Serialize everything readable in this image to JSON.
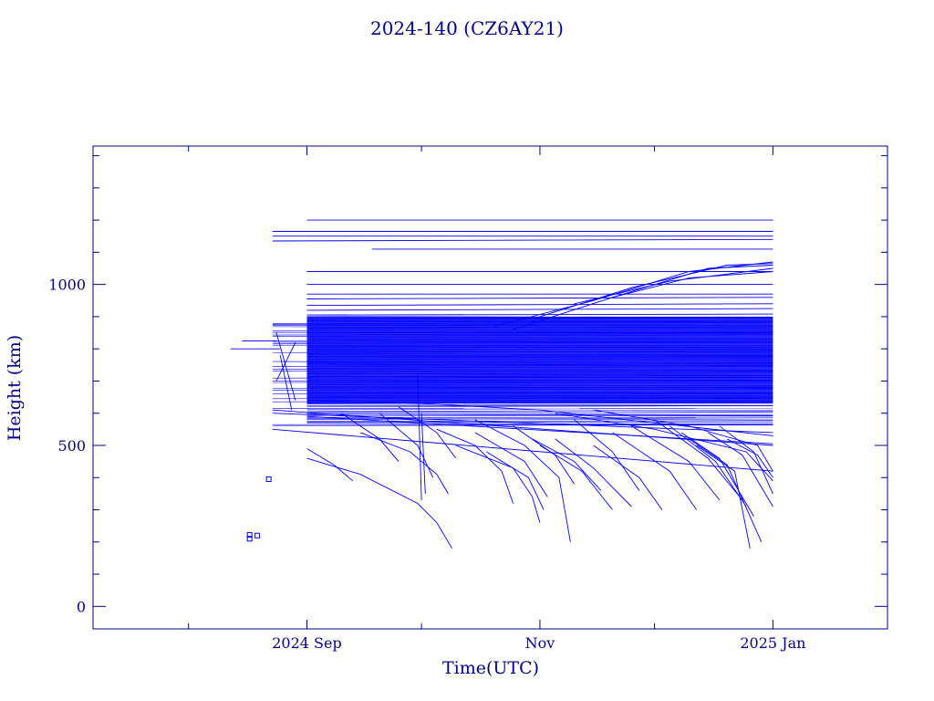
{
  "chart_data": {
    "type": "line",
    "title": "2024-140 (CZ6AY21)",
    "xlabel": "Time(UTC)",
    "ylabel": "Height (km)",
    "xlim": [
      "2024-07-07",
      "2025-01-31"
    ],
    "ylim": [
      -70,
      1430
    ],
    "x_ticks": [
      {
        "label": "2024 Sep",
        "date": "2024-09-01"
      },
      {
        "label": "Nov",
        "date": "2024-11-01"
      },
      {
        "label": "2025 Jan",
        "date": "2025-01-01"
      }
    ],
    "y_ticks": [
      {
        "label": "0",
        "value": 0
      },
      {
        "label": "500",
        "value": 500
      },
      {
        "label": "1000",
        "value": 1000
      }
    ],
    "grid": false,
    "colors": {
      "axis": "#00008b",
      "data": "#0000ff",
      "text": "#00008b"
    },
    "band": {
      "x_start": "2024-09-01",
      "x_end": "2025-01-01",
      "y_min": 630,
      "y_max": 900
    },
    "series": [
      {
        "x": [
          "2024-08-23",
          "2025-01-01"
        ],
        "y": [
          1165,
          1165
        ]
      },
      {
        "x": [
          "2024-08-23",
          "2025-01-01"
        ],
        "y": [
          1150,
          1150
        ]
      },
      {
        "x": [
          "2024-08-23",
          "2025-01-01"
        ],
        "y": [
          1135,
          1140
        ]
      },
      {
        "x": [
          "2024-09-01",
          "2025-01-01"
        ],
        "y": [
          1200,
          1200
        ]
      },
      {
        "x": [
          "2024-09-18",
          "2025-01-01"
        ],
        "y": [
          1110,
          1110
        ]
      },
      {
        "x": [
          "2024-09-01",
          "2025-01-01"
        ],
        "y": [
          1040,
          1040
        ]
      },
      {
        "x": [
          "2024-09-01",
          "2025-01-01"
        ],
        "y": [
          1000,
          1000
        ]
      },
      {
        "x": [
          "2024-09-01",
          "2025-01-01"
        ],
        "y": [
          970,
          970
        ]
      },
      {
        "x": [
          "2024-09-01",
          "2025-01-01"
        ],
        "y": [
          955,
          960
        ]
      },
      {
        "x": [
          "2024-09-01",
          "2025-01-01"
        ],
        "y": [
          935,
          940
        ]
      },
      {
        "x": [
          "2024-09-01",
          "2025-01-01"
        ],
        "y": [
          920,
          925
        ]
      },
      {
        "x": [
          "2024-09-01",
          "2025-01-01"
        ],
        "y": [
          905,
          908
        ]
      },
      {
        "x": [
          "2024-08-23",
          "2025-01-01"
        ],
        "y": [
          600,
          540
        ]
      },
      {
        "x": [
          "2024-08-23",
          "2025-01-01"
        ],
        "y": [
          610,
          500
        ]
      },
      {
        "x": [
          "2024-08-23",
          "2025-01-01"
        ],
        "y": [
          550,
          420
        ]
      },
      {
        "x": [
          "2024-09-01",
          "2025-01-01"
        ],
        "y": [
          590,
          505
        ]
      },
      {
        "x": [
          "2024-09-01",
          "2024-10-01",
          "2024-11-01",
          "2024-12-01",
          "2025-01-01"
        ],
        "y": [
          640,
          630,
          610,
          570,
          530
        ]
      },
      {
        "x": [
          "2024-10-20",
          "2024-11-15",
          "2024-12-10",
          "2025-01-01"
        ],
        "y": [
          870,
          950,
          1040,
          1070
        ]
      },
      {
        "x": [
          "2024-10-25",
          "2024-11-20",
          "2024-12-15",
          "2025-01-01"
        ],
        "y": [
          860,
          960,
          1050,
          1060
        ]
      },
      {
        "x": [
          "2024-11-01",
          "2024-11-25",
          "2024-12-20",
          "2025-01-01"
        ],
        "y": [
          900,
          990,
          1060,
          1065
        ]
      },
      {
        "x": [
          "2024-11-10",
          "2024-12-05",
          "2025-01-01"
        ],
        "y": [
          940,
          1010,
          1050
        ]
      },
      {
        "x": [
          "2024-11-20",
          "2024-12-10",
          "2025-01-01"
        ],
        "y": [
          960,
          1020,
          1040
        ]
      },
      {
        "x": [
          "2024-09-01",
          "2024-09-08",
          "2024-09-13"
        ],
        "y": [
          490,
          440,
          390
        ]
      },
      {
        "x": [
          "2024-09-01",
          "2024-09-15",
          "2024-09-30",
          "2024-10-05",
          "2024-10-09"
        ],
        "y": [
          460,
          410,
          320,
          260,
          180
        ]
      },
      {
        "x": [
          "2024-09-15",
          "2024-09-28",
          "2024-10-05",
          "2024-10-08"
        ],
        "y": [
          540,
          480,
          410,
          350
        ]
      },
      {
        "x": [
          "2024-09-20",
          "2024-09-30",
          "2024-10-04"
        ],
        "y": [
          600,
          500,
          400
        ]
      },
      {
        "x": [
          "2024-09-10",
          "2024-09-20",
          "2024-09-25"
        ],
        "y": [
          600,
          520,
          450
        ]
      },
      {
        "x": [
          "2024-09-25",
          "2024-10-05",
          "2024-10-10"
        ],
        "y": [
          620,
          540,
          460
        ]
      },
      {
        "x": [
          "2024-10-05",
          "2024-10-15",
          "2024-10-22",
          "2024-10-25"
        ],
        "y": [
          550,
          500,
          420,
          320
        ]
      },
      {
        "x": [
          "2024-10-10",
          "2024-10-25",
          "2024-10-30",
          "2024-11-01"
        ],
        "y": [
          500,
          430,
          340,
          260
        ]
      },
      {
        "x": [
          "2024-10-15",
          "2024-10-28",
          "2024-11-03"
        ],
        "y": [
          540,
          450,
          340
        ]
      },
      {
        "x": [
          "2024-10-18",
          "2024-10-29",
          "2024-11-02"
        ],
        "y": [
          480,
          400,
          300
        ]
      },
      {
        "x": [
          "2024-10-15",
          "2024-10-28",
          "2024-11-06",
          "2024-11-09"
        ],
        "y": [
          580,
          500,
          400,
          200
        ]
      },
      {
        "x": [
          "2024-10-25",
          "2024-11-05",
          "2024-11-10"
        ],
        "y": [
          560,
          470,
          380
        ]
      },
      {
        "x": [
          "2024-10-30",
          "2024-11-10",
          "2024-11-17"
        ],
        "y": [
          520,
          450,
          360
        ]
      },
      {
        "x": [
          "2024-11-01",
          "2024-11-12",
          "2024-11-20"
        ],
        "y": [
          500,
          420,
          300
        ]
      },
      {
        "x": [
          "2024-11-05",
          "2024-11-15",
          "2024-11-25"
        ],
        "y": [
          520,
          430,
          310
        ]
      },
      {
        "x": [
          "2024-11-10",
          "2024-11-20",
          "2024-11-27"
        ],
        "y": [
          580,
          480,
          360
        ]
      },
      {
        "x": [
          "2024-11-15",
          "2024-11-27",
          "2024-12-03"
        ],
        "y": [
          500,
          400,
          300
        ]
      },
      {
        "x": [
          "2024-11-20",
          "2024-12-05",
          "2024-12-12"
        ],
        "y": [
          540,
          420,
          300
        ]
      },
      {
        "x": [
          "2024-11-25",
          "2024-12-10",
          "2024-12-18"
        ],
        "y": [
          560,
          450,
          330
        ]
      },
      {
        "x": [
          "2024-12-01",
          "2024-12-15",
          "2024-12-24"
        ],
        "y": [
          580,
          460,
          330
        ]
      },
      {
        "x": [
          "2024-12-05",
          "2024-12-17",
          "2024-12-25"
        ],
        "y": [
          560,
          450,
          310
        ]
      },
      {
        "x": [
          "2024-12-08",
          "2024-12-18",
          "2024-12-27"
        ],
        "y": [
          540,
          460,
          280
        ]
      },
      {
        "x": [
          "2024-12-10",
          "2024-12-20",
          "2024-12-29"
        ],
        "y": [
          520,
          440,
          200
        ]
      },
      {
        "x": [
          "2024-12-12",
          "2024-12-22",
          "2024-12-26"
        ],
        "y": [
          500,
          420,
          180
        ]
      },
      {
        "x": [
          "2024-12-15",
          "2024-12-24",
          "2025-01-01"
        ],
        "y": [
          540,
          470,
          310
        ]
      },
      {
        "x": [
          "2024-12-18",
          "2024-12-27",
          "2025-01-01"
        ],
        "y": [
          560,
          480,
          350
        ]
      },
      {
        "x": [
          "2024-12-20",
          "2024-12-28",
          "2025-01-01"
        ],
        "y": [
          520,
          470,
          400
        ]
      },
      {
        "x": [
          "2024-11-15",
          "2024-12-10",
          "2024-12-28",
          "2025-01-01"
        ],
        "y": [
          610,
          560,
          500,
          420
        ]
      },
      {
        "x": [
          "2024-11-05",
          "2024-12-01",
          "2024-12-25",
          "2025-01-01"
        ],
        "y": [
          600,
          550,
          480,
          390
        ]
      },
      {
        "x": [
          "2024-08-24",
          "2024-08-29"
        ],
        "y": [
          850,
          640
        ]
      },
      {
        "x": [
          "2024-08-24",
          "2024-08-29"
        ],
        "y": [
          700,
          820
        ]
      },
      {
        "x": [
          "2024-08-25",
          "2024-08-28"
        ],
        "y": [
          780,
          610
        ]
      },
      {
        "x": [
          "2024-09-30",
          "2024-10-01"
        ],
        "y": [
          720,
          330
        ]
      },
      {
        "x": [
          "2024-10-01",
          "2024-10-02"
        ],
        "y": [
          600,
          350
        ]
      },
      {
        "x": [
          "2024-08-12",
          "2024-08-25"
        ],
        "y": [
          800,
          800
        ]
      },
      {
        "x": [
          "2024-08-15",
          "2024-08-24"
        ],
        "y": [
          825,
          825
        ]
      }
    ],
    "points": [
      {
        "x": "2024-08-17",
        "y": 210
      },
      {
        "x": "2024-08-17",
        "y": 222
      },
      {
        "x": "2024-08-19",
        "y": 220
      },
      {
        "x": "2024-08-22",
        "y": 395
      }
    ]
  }
}
